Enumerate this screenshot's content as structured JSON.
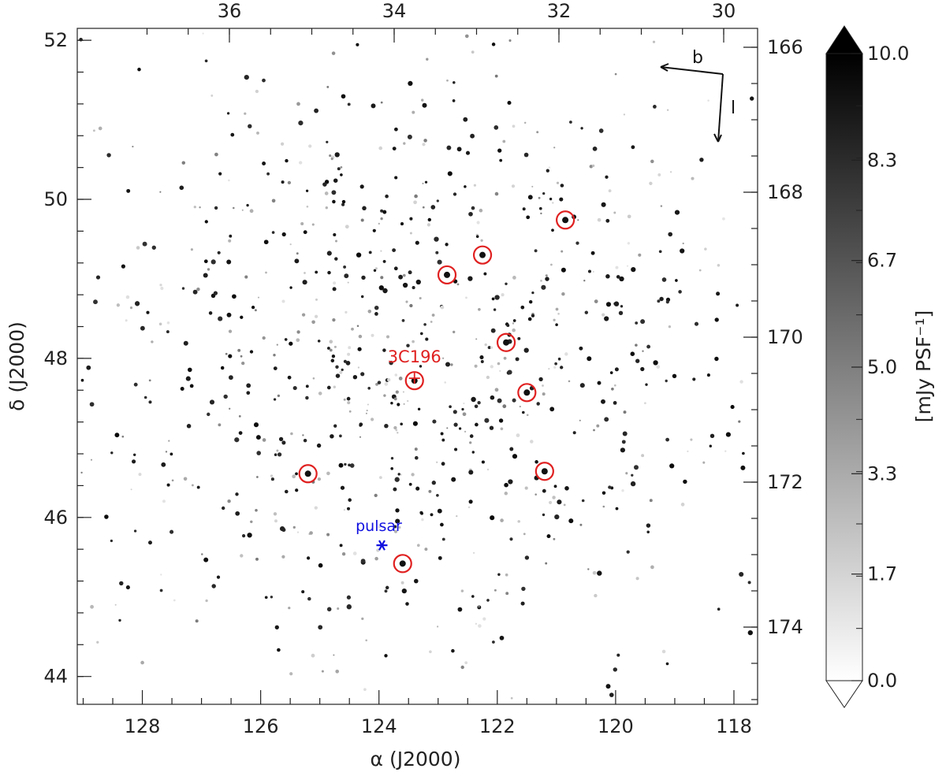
{
  "chart_data": {
    "type": "heatmap",
    "title": "",
    "x_axis": {
      "label": "α (J2000)",
      "range": [
        129.1,
        117.6
      ],
      "ticks": [
        "128",
        "126",
        "124",
        "122",
        "120",
        "118"
      ],
      "tick_values": [
        128,
        126,
        124,
        122,
        120,
        118
      ]
    },
    "y_axis": {
      "label": "δ (J2000)",
      "range": [
        43.65,
        52.15
      ],
      "ticks": [
        "44",
        "46",
        "48",
        "50",
        "52"
      ],
      "tick_values": [
        44,
        46,
        48,
        50,
        52
      ]
    },
    "top_axis": {
      "label": "",
      "ticks": [
        "36",
        "34",
        "32",
        "30"
      ],
      "tick_values": [
        36,
        34,
        32,
        30
      ],
      "x_pos": [
        35.6,
        33.6,
        31.6,
        29.7
      ]
    },
    "right_axis": {
      "label": "",
      "ticks": [
        "166",
        "168",
        "170",
        "172",
        "174"
      ],
      "tick_values": [
        166,
        168,
        170,
        172,
        174
      ],
      "y_pos": [
        51.9,
        49.95,
        48.0,
        46.05,
        44.1
      ]
    },
    "colorbar": {
      "label": "[mJy PSF⁻¹]",
      "min": 0.0,
      "max": 10.0,
      "ticks": [
        "10.0",
        "8.3",
        "6.7",
        "5.0",
        "3.3",
        "1.7",
        "0.0"
      ],
      "tick_values": [
        10.0,
        8.3,
        6.7,
        5.0,
        3.3,
        1.7,
        0.0
      ],
      "colormap": "white-to-black"
    },
    "annotations": [
      {
        "text": "3C196",
        "x": 123.4,
        "y": 47.75,
        "color": "#e02020"
      },
      {
        "text": "pulsar",
        "x": 123.95,
        "y": 45.65,
        "color": "#1010e0"
      }
    ],
    "circled_sources": [
      {
        "x": 120.85,
        "y": 49.74
      },
      {
        "x": 122.25,
        "y": 49.3
      },
      {
        "x": 122.85,
        "y": 49.05
      },
      {
        "x": 121.85,
        "y": 48.2
      },
      {
        "x": 123.4,
        "y": 47.72
      },
      {
        "x": 121.5,
        "y": 47.57
      },
      {
        "x": 125.2,
        "y": 46.55
      },
      {
        "x": 121.2,
        "y": 46.58
      },
      {
        "x": 123.6,
        "y": 45.42
      }
    ],
    "pulsar_marker": {
      "x": 123.95,
      "y": 45.65
    },
    "orientation_arrows": [
      {
        "label": "b",
        "direction": "left"
      },
      {
        "label": "l",
        "direction": "down"
      }
    ],
    "marker_colors": {
      "circles": "#e02020",
      "pulsar": "#1010e0"
    }
  }
}
